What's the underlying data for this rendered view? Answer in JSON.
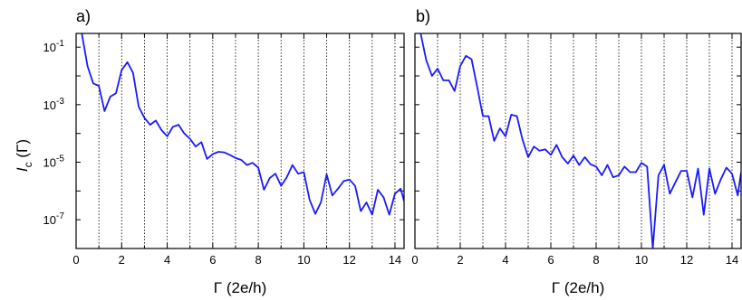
{
  "figure": {
    "ylabel_main": "I",
    "ylabel_sub": "c",
    "ylabel_tail": " (Γ)"
  },
  "chart_data": [
    {
      "type": "line",
      "panel_label": "a)",
      "xlabel": "Γ (2e/h)",
      "ylabel": "Ic (Γ)",
      "xlim": [
        0,
        14.4
      ],
      "ylim": [
        1e-08,
        0.3
      ],
      "yscale": "log",
      "xticks": [
        0,
        2,
        4,
        6,
        8,
        10,
        12,
        14
      ],
      "xtick_labels": [
        "0",
        "2",
        "4",
        "6",
        "8",
        "10",
        "12",
        "14"
      ],
      "yticks": [
        1e-07,
        1e-05,
        0.001,
        0.1
      ],
      "ytick_labels": [
        "10-7",
        "10-5",
        "10-3",
        "10-1"
      ],
      "ytick_bases": [
        "10",
        "10",
        "10",
        "10"
      ],
      "ytick_exps": [
        "-7",
        "-5",
        "-3",
        "-1"
      ],
      "grid_vertical": [
        1,
        2,
        3,
        4,
        5,
        6,
        7,
        8,
        9,
        10,
        11,
        12,
        13,
        14
      ],
      "grid": "dotted vertical lines at integer Γ",
      "line_color": "#1a1aff",
      "series": [
        {
          "x": [
            0.25,
            0.5,
            0.75,
            1.0,
            1.25,
            1.5,
            1.75,
            2.0,
            2.25,
            2.5,
            2.75,
            3.0,
            3.25,
            3.5,
            3.75,
            4.0,
            4.25,
            4.5,
            4.75,
            5.0,
            5.25,
            5.5,
            5.75,
            6.0,
            6.25,
            6.5,
            6.75,
            7.0,
            7.25,
            7.5,
            7.75,
            8.0,
            8.25,
            8.5,
            8.75,
            9.0,
            9.25,
            9.5,
            9.75,
            10.0,
            10.25,
            10.5,
            10.75,
            11.0,
            11.25,
            11.5,
            11.75,
            12.0,
            12.25,
            12.5,
            12.75,
            13.0,
            13.25,
            13.5,
            13.75,
            14.0,
            14.25,
            14.4
          ],
          "y": [
            0.3,
            0.022,
            0.0055,
            0.0045,
            0.0006,
            0.0019,
            0.0025,
            0.016,
            0.03,
            0.013,
            0.00085,
            0.00035,
            0.0002,
            0.00028,
            0.00013,
            8e-05,
            0.00017,
            0.0002,
            0.0001,
            6.5e-05,
            3.5e-05,
            5e-05,
            1.3e-05,
            1.9e-05,
            2.3e-05,
            2.2e-05,
            1.8e-05,
            1.4e-05,
            1.2e-05,
            8e-06,
            9.5e-06,
            6.5e-06,
            1.1e-06,
            2.8e-06,
            4e-06,
            1.5e-06,
            3e-06,
            8e-06,
            4e-06,
            4.5e-06,
            5e-07,
            1.6e-07,
            4e-07,
            3.8e-06,
            7e-07,
            1.2e-06,
            2.2e-06,
            2.5e-06,
            1.5e-06,
            2e-07,
            4e-07,
            1.5e-07,
            1.1e-06,
            6e-07,
            1.5e-07,
            8e-07,
            1.2e-06,
            4.5e-07
          ]
        }
      ]
    },
    {
      "type": "line",
      "panel_label": "b)",
      "xlabel": "Γ (2e/h)",
      "ylabel": "",
      "xlim": [
        0,
        14.4
      ],
      "ylim": [
        1e-08,
        0.3
      ],
      "yscale": "log",
      "xticks": [
        0,
        2,
        4,
        6,
        8,
        10,
        12,
        14
      ],
      "xtick_labels": [
        "0",
        "2",
        "4",
        "6",
        "8",
        "10",
        "12",
        "14"
      ],
      "grid_vertical": [
        1,
        2,
        3,
        4,
        5,
        6,
        7,
        8,
        9,
        10,
        11,
        12,
        13,
        14
      ],
      "grid": "dotted vertical lines at integer Γ",
      "line_color": "#1a1aff",
      "series": [
        {
          "x": [
            0.25,
            0.5,
            0.75,
            1.0,
            1.25,
            1.5,
            1.75,
            2.0,
            2.25,
            2.5,
            2.75,
            3.0,
            3.25,
            3.5,
            3.75,
            4.0,
            4.25,
            4.5,
            4.75,
            5.0,
            5.25,
            5.5,
            5.75,
            6.0,
            6.25,
            6.5,
            6.75,
            7.0,
            7.25,
            7.5,
            7.75,
            8.0,
            8.25,
            8.5,
            8.75,
            9.0,
            9.25,
            9.5,
            9.75,
            10.0,
            10.25,
            10.5,
            10.75,
            11.0,
            11.25,
            11.5,
            11.75,
            12.0,
            12.25,
            12.5,
            12.75,
            13.0,
            13.25,
            13.5,
            13.75,
            14.0,
            14.25,
            14.4
          ],
          "y": [
            0.3,
            0.035,
            0.01,
            0.018,
            0.007,
            0.007,
            0.003,
            0.022,
            0.05,
            0.038,
            0.004,
            0.0004,
            0.0004,
            5.5e-05,
            0.00015,
            8e-05,
            0.00045,
            0.0004,
            6e-05,
            1.5e-05,
            3.5e-05,
            2.5e-05,
            2.8e-05,
            1.8e-05,
            4e-05,
            1.5e-05,
            9e-06,
            1.7e-05,
            8e-06,
            1.5e-05,
            8.5e-06,
            7e-06,
            3.5e-06,
            8e-06,
            3e-06,
            3.5e-06,
            7e-06,
            4.5e-06,
            4.5e-06,
            9.5e-06,
            7e-06,
            1e-11,
            3.5e-06,
            8e-06,
            8e-07,
            2e-06,
            5e-06,
            5e-06,
            6e-07,
            6e-06,
            1.5e-07,
            6e-06,
            8e-07,
            2.5e-06,
            6.5e-06,
            4e-06,
            7e-07,
            4.5e-06
          ]
        }
      ]
    }
  ]
}
